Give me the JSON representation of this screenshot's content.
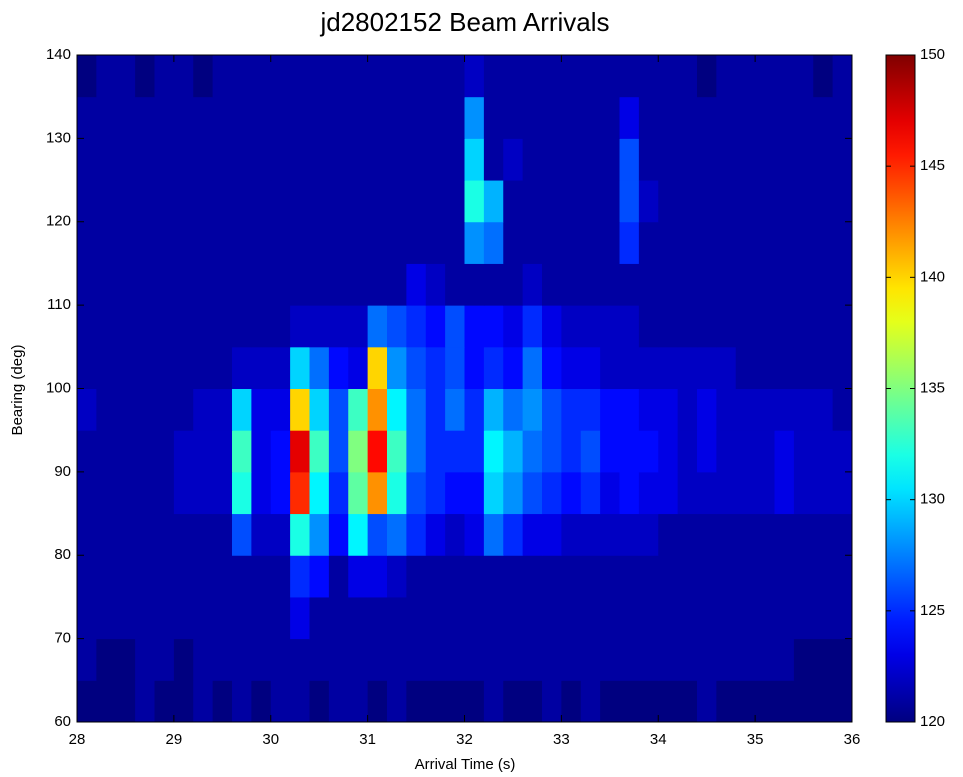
{
  "chart_data": {
    "type": "heatmap",
    "title": "jd2802152 Beam Arrivals",
    "x_label": "Arrival Time (s)",
    "y_label": "Bearing (deg)",
    "colormap": "jet",
    "x": [
      28.1,
      28.3,
      28.5,
      28.7,
      28.9,
      29.1,
      29.3,
      29.5,
      29.7,
      29.9,
      30.1,
      30.3,
      30.5,
      30.7,
      30.9,
      31.1,
      31.3,
      31.5,
      31.7,
      31.9,
      32.1,
      32.3,
      32.5,
      32.7,
      32.9,
      33.1,
      33.3,
      33.5,
      33.7,
      33.9,
      34.1,
      34.3,
      34.5,
      34.7,
      34.9,
      35.1,
      35.3,
      35.5,
      35.7,
      35.9
    ],
    "y": [
      62.5,
      67.5,
      72.5,
      77.5,
      82.5,
      87.5,
      92.5,
      97.5,
      102.5,
      107.5,
      112.5,
      117.5,
      122.5,
      127.5,
      132.5,
      137.5
    ],
    "z": [
      [
        120,
        120,
        120,
        121,
        120,
        120,
        121,
        120,
        121,
        120,
        121,
        121,
        120,
        121,
        121,
        120,
        121,
        120,
        120,
        120,
        120,
        121,
        120,
        120,
        121,
        120,
        121,
        120,
        120,
        120,
        120,
        120,
        121,
        120,
        120,
        120,
        120,
        120,
        120,
        120
      ],
      [
        121,
        120,
        120,
        121,
        121,
        120,
        121,
        121,
        121,
        121,
        121,
        121,
        121,
        121,
        121,
        121,
        121,
        121,
        121,
        121,
        121,
        121,
        121,
        121,
        121,
        121,
        121,
        121,
        121,
        121,
        121,
        121,
        121,
        121,
        121,
        121,
        121,
        120,
        120,
        120
      ],
      [
        121,
        121,
        121,
        121,
        121,
        121,
        121,
        121,
        121,
        121,
        121,
        123,
        121,
        121,
        121,
        121,
        121,
        121,
        121,
        121,
        121,
        121,
        121,
        121,
        121,
        121,
        121,
        121,
        121,
        121,
        121,
        121,
        121,
        121,
        121,
        121,
        121,
        121,
        121,
        121
      ],
      [
        121,
        121,
        121,
        121,
        121,
        121,
        121,
        121,
        121,
        121,
        121,
        125,
        124,
        121,
        123,
        123,
        122,
        121,
        121,
        121,
        121,
        121,
        121,
        121,
        121,
        121,
        121,
        121,
        121,
        121,
        121,
        121,
        121,
        121,
        121,
        121,
        121,
        121,
        121,
        121
      ],
      [
        121,
        121,
        121,
        121,
        121,
        121,
        121,
        121,
        126,
        122,
        122,
        132,
        128,
        124,
        131,
        126,
        127,
        125,
        123,
        122,
        123,
        127,
        125,
        123,
        123,
        122,
        122,
        122,
        122,
        122,
        121,
        121,
        121,
        121,
        121,
        121,
        121,
        121,
        121,
        121
      ],
      [
        121,
        121,
        121,
        121,
        121,
        122,
        122,
        122,
        132,
        123,
        124,
        145,
        131,
        125,
        134,
        142,
        132,
        126,
        125,
        124,
        124,
        130,
        128,
        126,
        125,
        124,
        125,
        123,
        124,
        123,
        123,
        122,
        122,
        122,
        122,
        122,
        123,
        122,
        122,
        122
      ],
      [
        121,
        121,
        121,
        121,
        121,
        122,
        122,
        122,
        133,
        123,
        124,
        147,
        133,
        126,
        135,
        146,
        133,
        127,
        125,
        125,
        125,
        131,
        129,
        127,
        126,
        125,
        126,
        124,
        124,
        124,
        123,
        122,
        123,
        122,
        122,
        122,
        123,
        122,
        122,
        122
      ],
      [
        122,
        121,
        121,
        121,
        121,
        121,
        122,
        122,
        130,
        123,
        123,
        140,
        130,
        126,
        133,
        142,
        131,
        127,
        125,
        127,
        125,
        129,
        127,
        128,
        126,
        125,
        125,
        124,
        124,
        123,
        123,
        122,
        123,
        122,
        122,
        122,
        122,
        122,
        122,
        121
      ],
      [
        121,
        121,
        121,
        121,
        121,
        121,
        121,
        121,
        122,
        122,
        122,
        130,
        127,
        124,
        123,
        140,
        128,
        126,
        125,
        126,
        124,
        125,
        124,
        127,
        124,
        123,
        123,
        122,
        122,
        122,
        122,
        122,
        122,
        122,
        121,
        121,
        121,
        121,
        121,
        121
      ],
      [
        121,
        121,
        121,
        121,
        121,
        121,
        121,
        121,
        121,
        121,
        121,
        122,
        122,
        122,
        122,
        127,
        126,
        125,
        124,
        126,
        124,
        124,
        123,
        125,
        123,
        122,
        122,
        122,
        122,
        121,
        121,
        121,
        121,
        121,
        121,
        121,
        121,
        121,
        121,
        121
      ],
      [
        121,
        121,
        121,
        121,
        121,
        121,
        121,
        121,
        121,
        121,
        121,
        121,
        121,
        121,
        121,
        121,
        121,
        123,
        122,
        121,
        121,
        121,
        121,
        122,
        121,
        121,
        121,
        121,
        121,
        121,
        121,
        121,
        121,
        121,
        121,
        121,
        121,
        121,
        121,
        121
      ],
      [
        121,
        121,
        121,
        121,
        121,
        121,
        121,
        121,
        121,
        121,
        121,
        121,
        121,
        121,
        121,
        121,
        121,
        121,
        121,
        121,
        128,
        127,
        121,
        121,
        121,
        121,
        121,
        121,
        125,
        121,
        121,
        121,
        121,
        121,
        121,
        121,
        121,
        121,
        121,
        121
      ],
      [
        121,
        121,
        121,
        121,
        121,
        121,
        121,
        121,
        121,
        121,
        121,
        121,
        121,
        121,
        121,
        121,
        121,
        121,
        121,
        121,
        132,
        129,
        121,
        121,
        121,
        121,
        121,
        121,
        126,
        122,
        121,
        121,
        121,
        121,
        121,
        121,
        121,
        121,
        121,
        121
      ],
      [
        121,
        121,
        121,
        121,
        121,
        121,
        121,
        121,
        121,
        121,
        121,
        121,
        121,
        121,
        121,
        121,
        121,
        121,
        121,
        121,
        130,
        121,
        122,
        121,
        121,
        121,
        121,
        121,
        126,
        121,
        121,
        121,
        121,
        121,
        121,
        121,
        121,
        121,
        121,
        121
      ],
      [
        121,
        121,
        121,
        121,
        121,
        121,
        121,
        121,
        121,
        121,
        121,
        121,
        121,
        121,
        121,
        121,
        121,
        121,
        121,
        121,
        128,
        121,
        121,
        121,
        121,
        121,
        121,
        121,
        123,
        121,
        121,
        121,
        121,
        121,
        121,
        121,
        121,
        121,
        121,
        121
      ],
      [
        120,
        121,
        121,
        120,
        121,
        121,
        120,
        121,
        121,
        121,
        121,
        121,
        121,
        121,
        121,
        121,
        121,
        121,
        121,
        121,
        122,
        121,
        121,
        121,
        121,
        121,
        121,
        121,
        121,
        121,
        121,
        121,
        120,
        121,
        121,
        121,
        121,
        121,
        120,
        121
      ]
    ],
    "xlim": [
      28,
      36
    ],
    "xticks": [
      28,
      29,
      30,
      31,
      32,
      33,
      34,
      35,
      36
    ],
    "ylim": [
      60,
      140
    ],
    "yticks": [
      60,
      70,
      80,
      90,
      100,
      110,
      120,
      130,
      140
    ],
    "clim": [
      120,
      150
    ],
    "cticks": [
      120,
      125,
      130,
      135,
      140,
      145,
      150
    ]
  }
}
